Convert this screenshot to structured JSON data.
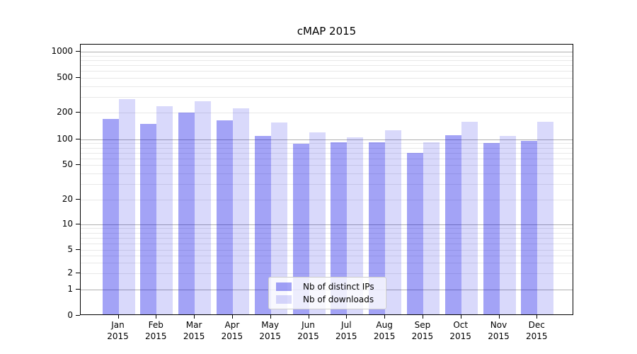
{
  "chart_data": {
    "type": "bar",
    "title": "cMAP 2015",
    "categories": [
      "Jan",
      "Feb",
      "Mar",
      "Apr",
      "May",
      "Jun",
      "Jul",
      "Aug",
      "Sep",
      "Oct",
      "Nov",
      "Dec"
    ],
    "x_sublabel": "2015",
    "series": [
      {
        "name": "Nb of distinct IPs",
        "color": "rgba(0,0,230,0.36)",
        "values": [
          170,
          149,
          200,
          165,
          110,
          89,
          92,
          93,
          70,
          112,
          90,
          97
        ]
      },
      {
        "name": "Nb of downloads",
        "color": "rgba(0,0,230,0.15)",
        "values": [
          288,
          235,
          270,
          225,
          155,
          121,
          106,
          126,
          93,
          158,
          110,
          158
        ]
      }
    ],
    "yscale": "symlog",
    "yticks": [
      0,
      1,
      2,
      5,
      10,
      20,
      50,
      100,
      200,
      500,
      1000
    ],
    "ylim": [
      0,
      1200
    ],
    "grid": "both",
    "legend_position": "lower center",
    "colors": {
      "major_grid": "#b0b0b0",
      "minor_grid": "#e8e8e8",
      "axis": "#000000",
      "text": "#000000",
      "background": "#ffffff"
    }
  }
}
